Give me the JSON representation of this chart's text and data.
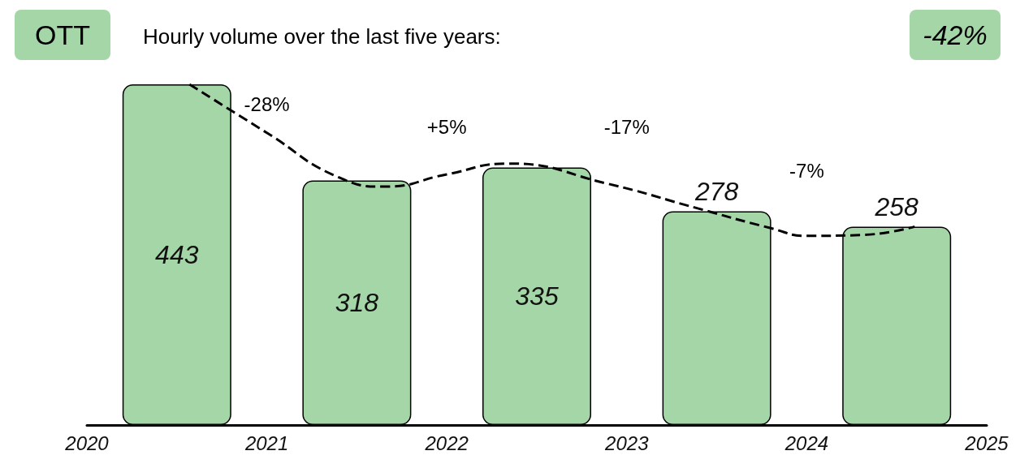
{
  "chart_data": {
    "type": "bar",
    "title": "OTT",
    "subtitle": "Hourly volume over the last five years:",
    "x": [
      2020.5,
      2021.5,
      2022.5,
      2023.5,
      2024.5
    ],
    "xlim": [
      2020,
      2025
    ],
    "xticks": [
      2020,
      2021,
      2022,
      2023,
      2024,
      2025
    ],
    "series": [
      {
        "color": "#a5d6a7",
        "values": [
          443,
          318,
          335,
          278,
          258
        ],
        "value_labels": [
          "443",
          "318",
          "335",
          "278",
          "258"
        ]
      },
      {
        "type": "line",
        "color": "#000000",
        "line_style": "dashed",
        "x": [
          2020.57,
          2021.0,
          2021.4,
          2021.66,
          2022.0,
          2022.34,
          2022.89,
          2023.39,
          2023.8,
          2024.0,
          2024.3,
          2024.6
        ],
        "values": [
          443,
          380,
          322,
          310,
          326,
          340,
          314,
          282,
          256,
          246,
          247,
          258
        ]
      }
    ],
    "grid": false,
    "marker": "none",
    "annotations": [
      "-28%",
      "+5%",
      "-17%",
      "-7%",
      "-42%"
    ]
  }
}
